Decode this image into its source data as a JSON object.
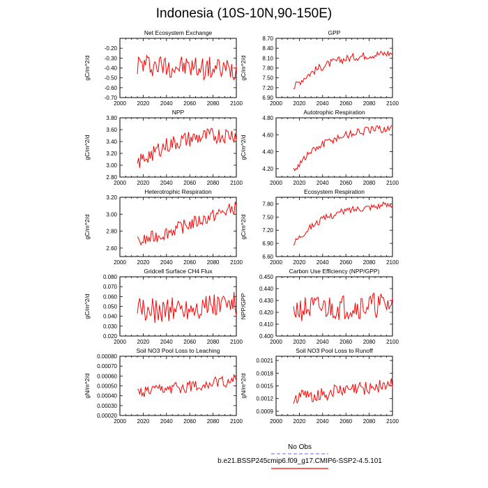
{
  "title": "Indonesia (10S-10N,90-150E)",
  "legend": {
    "obs_label": "No Obs",
    "obs_color": "#8080ff",
    "case_label": "b.e21.BSSP245cmip6.f09_g17.CMIP6-SSP2-4.5.101",
    "case_color": "#ff0000"
  },
  "line_color": "#ff0000",
  "x_axis": {
    "range": [
      2000,
      2100
    ],
    "ticks": [
      "2000",
      "2020",
      "2040",
      "2060",
      "2080",
      "2100"
    ]
  },
  "chart_data": [
    {
      "type": "line",
      "title": "Net Ecosystem Exchange",
      "ylabel": "gC/m^2/d",
      "ylim": [
        -0.7,
        -0.1
      ],
      "yticks": [
        "-0.20",
        "-0.30",
        "-0.40",
        "-0.50",
        "-0.60",
        "-0.70"
      ],
      "ytick_values": [
        -0.2,
        -0.3,
        -0.4,
        -0.5,
        -0.6,
        -0.7
      ],
      "x_start": 2015,
      "x_end": 2100,
      "trend": [
        -0.36,
        -0.42
      ],
      "amp": 0.12,
      "dec": 2
    },
    {
      "type": "line",
      "title": "GPP",
      "ylabel": "gC/m^2/d",
      "ylim": [
        6.9,
        8.7
      ],
      "yticks": [
        "8.70",
        "8.40",
        "8.10",
        "7.80",
        "7.50",
        "7.20",
        "6.90"
      ],
      "ytick_values": [
        8.7,
        8.4,
        8.1,
        7.8,
        7.5,
        7.2,
        6.9
      ],
      "x_start": 2015,
      "x_end": 2100,
      "trend": [
        7.2,
        8.25
      ],
      "amp": 0.12,
      "dec": 2,
      "shape": "sat"
    },
    {
      "type": "line",
      "title": "NPP",
      "ylabel": "gC/m^2/d",
      "ylim": [
        2.8,
        3.8
      ],
      "yticks": [
        "3.80",
        "3.60",
        "3.40",
        "3.20",
        "3.00",
        "2.80"
      ],
      "ytick_values": [
        3.8,
        3.6,
        3.4,
        3.2,
        3.0,
        2.8
      ],
      "x_start": 2015,
      "x_end": 2100,
      "trend": [
        3.02,
        3.52
      ],
      "amp": 0.14,
      "dec": 2,
      "shape": "sat"
    },
    {
      "type": "line",
      "title": "Autotrophic Respiration",
      "ylabel": "gC/m^2/d",
      "ylim": [
        4.1,
        4.8
      ],
      "yticks": [
        "4.80",
        "4.60",
        "4.40",
        "4.20"
      ],
      "ytick_values": [
        4.8,
        4.6,
        4.4,
        4.2
      ],
      "x_start": 2015,
      "x_end": 2100,
      "trend": [
        4.18,
        4.68
      ],
      "amp": 0.05,
      "dec": 2,
      "shape": "sat"
    },
    {
      "type": "line",
      "title": "Heterotrophic Respiration",
      "ylabel": "gC/m^2/d",
      "ylim": [
        2.5,
        3.2
      ],
      "yticks": [
        "3.20",
        "3.00",
        "2.80",
        "2.60"
      ],
      "ytick_values": [
        3.2,
        3.0,
        2.8,
        2.6
      ],
      "x_start": 2015,
      "x_end": 2100,
      "trend": [
        2.66,
        3.08
      ],
      "amp": 0.08,
      "dec": 2,
      "shape": "lin"
    },
    {
      "type": "line",
      "title": "Ecosystem Respiration",
      "ylabel": "gC/m^2/d",
      "ylim": [
        6.6,
        7.95
      ],
      "yticks": [
        "7.80",
        "7.50",
        "7.20",
        "6.90",
        "6.60"
      ],
      "ytick_values": [
        7.8,
        7.5,
        7.2,
        6.9,
        6.6
      ],
      "x_start": 2015,
      "x_end": 2100,
      "trend": [
        6.9,
        7.78
      ],
      "amp": 0.08,
      "dec": 2,
      "shape": "sat"
    },
    {
      "type": "line",
      "title": "Gridcell Surface CH4 Flux",
      "ylabel": "gC/m^2/d",
      "ylim": [
        0.02,
        0.08
      ],
      "yticks": [
        "0.080",
        "0.070",
        "0.060",
        "0.050",
        "0.040",
        "0.030",
        "0.020"
      ],
      "ytick_values": [
        0.08,
        0.07,
        0.06,
        0.05,
        0.04,
        0.03,
        0.02
      ],
      "x_start": 2015,
      "x_end": 2100,
      "trend": [
        0.045,
        0.052
      ],
      "amp": 0.013,
      "dec": 4
    },
    {
      "type": "line",
      "title": "Carbon Use Efficiency (NPP/GPP)",
      "ylabel": "NPP/GPP",
      "ylim": [
        0.4,
        0.45
      ],
      "yticks": [
        "0.450",
        "0.440",
        "0.430",
        "0.420",
        "0.410",
        "0.400"
      ],
      "ytick_values": [
        0.45,
        0.44,
        0.43,
        0.42,
        0.41,
        0.4
      ],
      "x_start": 2015,
      "x_end": 2100,
      "trend": [
        0.422,
        0.426
      ],
      "amp": 0.011,
      "dec": 4
    },
    {
      "type": "line",
      "title": "Soil NO3 Pool Loss to Leaching",
      "ylabel": "gN/m^2/d",
      "ylim": [
        0.0002,
        0.0008
      ],
      "yticks": [
        "0.00080",
        "0.00070",
        "0.00060",
        "0.00050",
        "0.00040",
        "0.00030",
        "0.00020"
      ],
      "ytick_values": [
        0.0008,
        0.0007,
        0.0006,
        0.0005,
        0.0004,
        0.0003,
        0.0002
      ],
      "x_start": 2015,
      "x_end": 2100,
      "trend": [
        0.00042,
        0.00056
      ],
      "amp": 6e-05,
      "dec": 6,
      "shape": "lin"
    },
    {
      "type": "line",
      "title": "Soil NO3 Pool Loss to Runoff",
      "ylabel": "gN/m^2/d",
      "ylim": [
        0.0008,
        0.0022
      ],
      "yticks": [
        "0.0021",
        "0.0018",
        "0.0015",
        "0.0012",
        "0.0009"
      ],
      "ytick_values": [
        0.0021,
        0.0018,
        0.0015,
        0.0012,
        0.0009
      ],
      "x_start": 2015,
      "x_end": 2100,
      "trend": [
        0.00122,
        0.00155
      ],
      "amp": 0.00017,
      "dec": 6,
      "shape": "lin"
    }
  ]
}
